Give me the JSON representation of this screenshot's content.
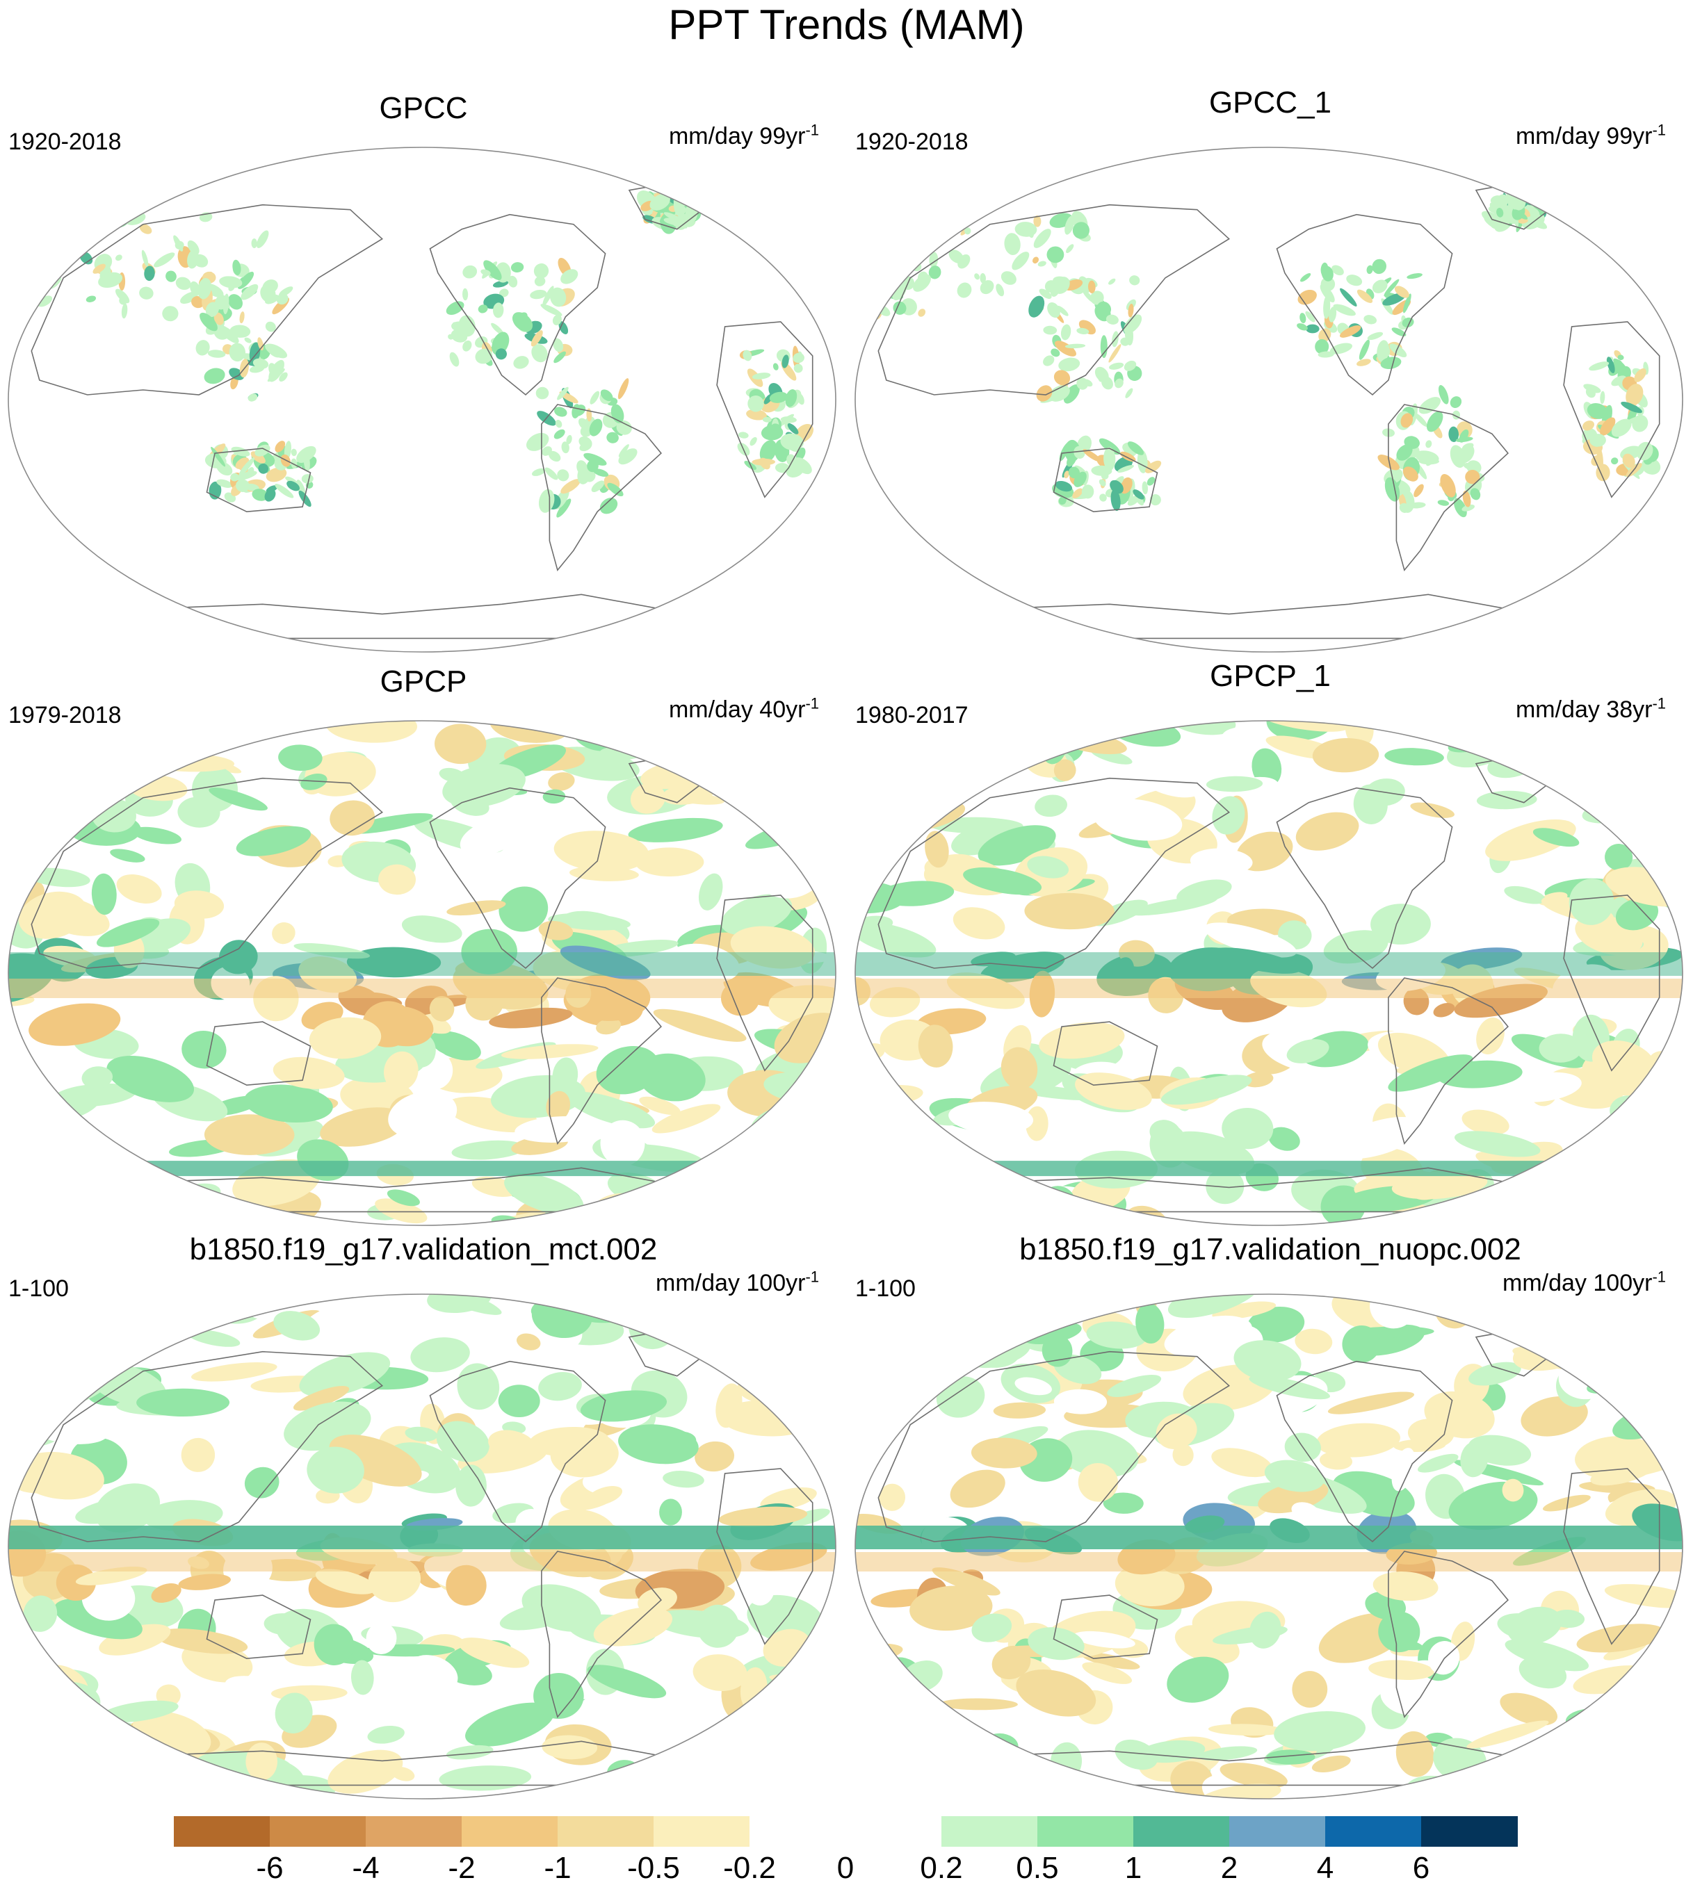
{
  "title": "PPT Trends (MAM)",
  "panels": [
    {
      "title": "GPCC",
      "period": "1920-2018",
      "units": "mm/day 99yr",
      "exp": "-1",
      "type": "land"
    },
    {
      "title": "GPCC_1",
      "period": "1920-2018",
      "units": "mm/day 99yr",
      "exp": "-1",
      "type": "land"
    },
    {
      "title": "GPCP",
      "period": "1979-2018",
      "units": "mm/day 40yr",
      "exp": "-1",
      "type": "global"
    },
    {
      "title": "GPCP_1",
      "period": "1980-2017",
      "units": "mm/day 38yr",
      "exp": "-1",
      "type": "global"
    },
    {
      "title": "b1850.f19_g17.validation_mct.002",
      "period": "1-100",
      "units": "mm/day 100yr",
      "exp": "-1",
      "type": "model"
    },
    {
      "title": "b1850.f19_g17.validation_nuopc.002",
      "period": "1-100",
      "units": "mm/day 100yr",
      "exp": "-1",
      "type": "model"
    }
  ],
  "colorbar": {
    "colors": [
      "#b36a2a",
      "#cd8a46",
      "#dfa464",
      "#f2c880",
      "#f3dc9c",
      "#fbefbc",
      "#ffffff",
      "#ffffff",
      "#c7f5c8",
      "#93e6a6",
      "#52b995",
      "#6da3c6",
      "#0d68aa",
      "#04345a"
    ],
    "labels": [
      "-6",
      "-4",
      "-2",
      "-1",
      "-0.5",
      "-0.2",
      "0",
      "0.2",
      "0.5",
      "1",
      "2",
      "4",
      "6"
    ]
  }
}
